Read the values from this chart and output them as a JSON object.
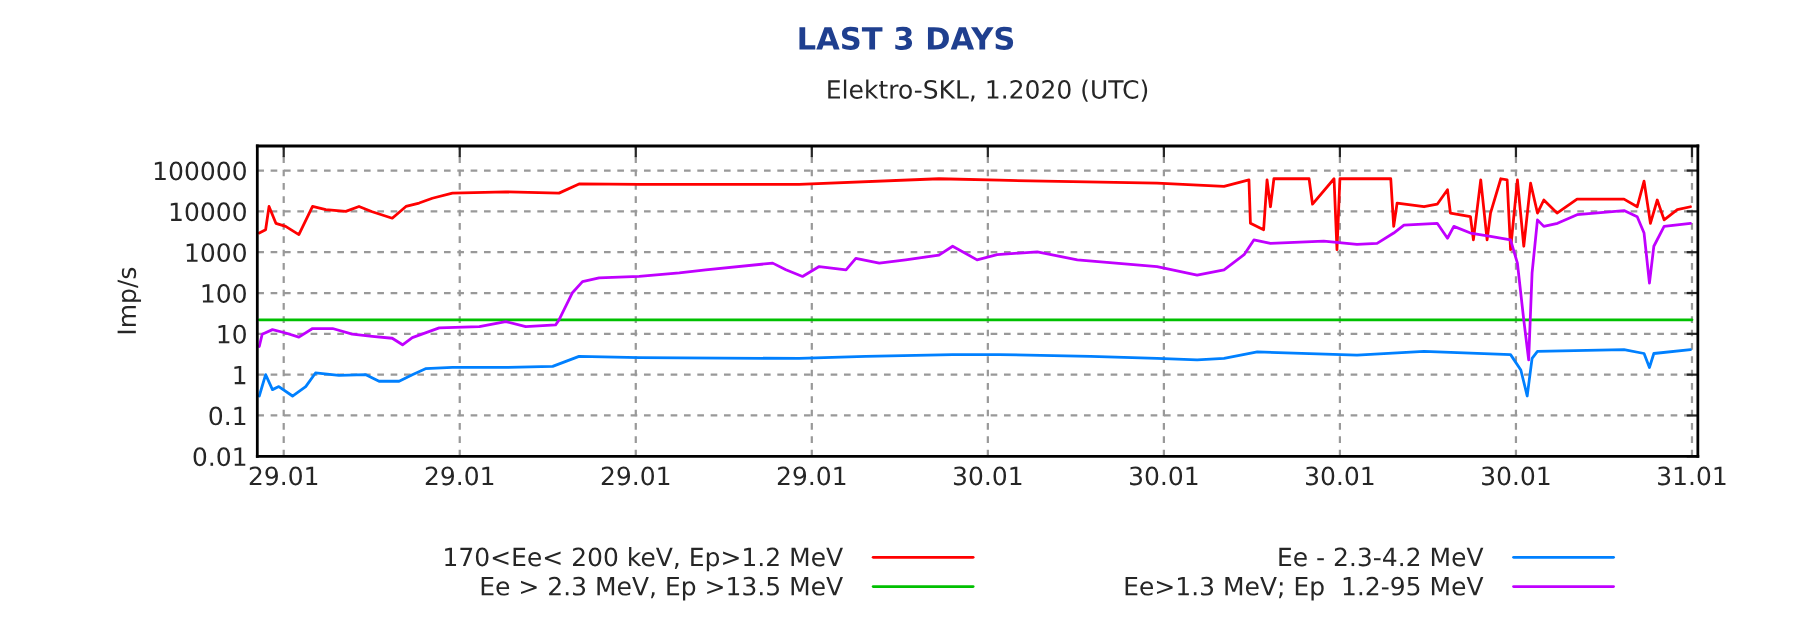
{
  "chart_data": {
    "type": "line",
    "title": "LAST 3 DAYS",
    "subtitle": "Elektro-SKL, 1.2020 (UTC)",
    "ylabel": "Imp/s",
    "log": "y",
    "grid": true,
    "legend": "bottom",
    "line_style": "solid",
    "marker": "none",
    "xlim": [
      "2020-01-28T23:06",
      "2020-01-31T00:12"
    ],
    "xticks": [
      {
        "value": "2020-01-29T00:00",
        "label": "29.01"
      },
      {
        "value": "2020-01-29T06:00",
        "label": "29.01"
      },
      {
        "value": "2020-01-29T12:00",
        "label": "29.01"
      },
      {
        "value": "2020-01-29T18:00",
        "label": "29.01"
      },
      {
        "value": "2020-01-30T00:00",
        "label": "30.01"
      },
      {
        "value": "2020-01-30T06:00",
        "label": "30.01"
      },
      {
        "value": "2020-01-30T12:00",
        "label": "30.01"
      },
      {
        "value": "2020-01-30T18:00",
        "label": "30.01"
      },
      {
        "value": "2020-01-31T00:00",
        "label": "31.01"
      }
    ],
    "ylim": [
      0.01,
      400000
    ],
    "yticks": [
      0.01,
      0.1,
      1,
      10,
      100,
      1000,
      10000,
      100000
    ],
    "series": [
      {
        "name": "170<Ee< 200 keV, Ep>1.2 MeV",
        "color": "#ff0000",
        "x": [
          "2020-01-28T23:10",
          "2020-01-28T23:23",
          "2020-01-28T23:30",
          "2020-01-28T23:44",
          "2020-01-29T00:04",
          "2020-01-29T00:31",
          "2020-01-29T00:59",
          "2020-01-29T01:26",
          "2020-01-29T02:07",
          "2020-01-29T02:34",
          "2020-01-29T03:01",
          "2020-01-29T03:42",
          "2020-01-29T04:10",
          "2020-01-29T04:37",
          "2020-01-29T05:04",
          "2020-01-29T05:45",
          "2020-01-29T07:34",
          "2020-01-29T09:23",
          "2020-01-29T10:04",
          "2020-01-29T12:07",
          "2020-01-29T17:34",
          "2020-01-29T22:20",
          "2020-01-30T00:23",
          "2020-01-30T05:46",
          "2020-01-30T08:03",
          "2020-01-30T08:54",
          "2020-01-30T08:57",
          "2020-01-30T09:24",
          "2020-01-30T09:31",
          "2020-01-30T09:38",
          "2020-01-30T09:45",
          "2020-01-30T10:57",
          "2020-01-30T11:04",
          "2020-01-30T11:48",
          "2020-01-30T11:54",
          "2020-01-30T12:00",
          "2020-01-30T13:44",
          "2020-01-30T13:50",
          "2020-01-30T13:57",
          "2020-01-30T14:52",
          "2020-01-30T15:19",
          "2020-01-30T15:40",
          "2020-01-30T15:46",
          "2020-01-30T16:27",
          "2020-01-30T16:33",
          "2020-01-30T16:48",
          "2020-01-30T17:01",
          "2020-01-30T17:08",
          "2020-01-30T17:29",
          "2020-01-30T17:42",
          "2020-01-30T17:49",
          "2020-01-30T18:03",
          "2020-01-30T18:16",
          "2020-01-30T18:30",
          "2020-01-30T18:44",
          "2020-01-30T18:57",
          "2020-01-30T19:24",
          "2020-01-30T20:05",
          "2020-01-30T21:41",
          "2020-01-30T22:08",
          "2020-01-30T22:22",
          "2020-01-30T22:35",
          "2020-01-30T22:49",
          "2020-01-30T23:03",
          "2020-01-30T23:30",
          "2020-01-30T23:57"
        ],
        "values": [
          2950,
          3550,
          13200,
          5100,
          4300,
          2700,
          13200,
          11000,
          10000,
          13200,
          9800,
          6800,
          13200,
          16000,
          21000,
          28000,
          30000,
          28000,
          47000,
          46000,
          46000,
          63000,
          58000,
          49000,
          41000,
          59000,
          5100,
          3550,
          59000,
          13000,
          63000,
          63000,
          15000,
          63000,
          1150,
          63000,
          63000,
          4300,
          16000,
          13000,
          15000,
          34000,
          9100,
          7400,
          2000,
          59000,
          2000,
          9100,
          63000,
          59000,
          1150,
          59000,
          1400,
          49000,
          9100,
          19000,
          9100,
          20000,
          20000,
          13000,
          55000,
          5100,
          19000,
          6200,
          11000,
          13000
        ]
      },
      {
        "name": "Ee > 2.3 MeV, Ep >13.5 MeV",
        "color": "#00c000",
        "x": [
          "2020-01-28T23:10",
          "2020-01-31T00:00"
        ],
        "values": [
          22,
          22
        ]
      },
      {
        "name": "Ee - 2.3-4.2 MeV",
        "color": "#0080ff",
        "x": [
          "2020-01-28T23:10",
          "2020-01-28T23:23",
          "2020-01-28T23:37",
          "2020-01-28T23:50",
          "2020-01-29T00:18",
          "2020-01-29T00:45",
          "2020-01-29T01:05",
          "2020-01-29T01:53",
          "2020-01-29T02:48",
          "2020-01-29T03:15",
          "2020-01-29T03:56",
          "2020-01-29T04:23",
          "2020-01-29T04:50",
          "2020-01-29T05:45",
          "2020-01-29T07:34",
          "2020-01-29T09:10",
          "2020-01-29T10:04",
          "2020-01-29T12:07",
          "2020-01-29T17:34",
          "2020-01-29T19:50",
          "2020-01-29T22:48",
          "2020-01-30T00:23",
          "2020-01-30T03:30",
          "2020-01-30T05:46",
          "2020-01-30T07:08",
          "2020-01-30T08:03",
          "2020-01-30T09:11",
          "2020-01-30T12:35",
          "2020-01-30T14:52",
          "2020-01-30T17:49",
          "2020-01-30T18:10",
          "2020-01-30T18:23",
          "2020-01-30T18:33",
          "2020-01-30T18:44",
          "2020-01-30T21:41",
          "2020-01-30T22:22",
          "2020-01-30T22:33",
          "2020-01-30T22:42",
          "2020-01-30T23:57"
        ],
        "values": [
          0.3,
          1.0,
          0.43,
          0.51,
          0.3,
          0.51,
          1.1,
          0.96,
          1.0,
          0.69,
          0.69,
          1.0,
          1.4,
          1.5,
          1.5,
          1.6,
          2.8,
          2.6,
          2.5,
          2.8,
          3.1,
          3.1,
          2.8,
          2.5,
          2.3,
          2.5,
          3.6,
          3.0,
          3.7,
          3.1,
          1.3,
          0.3,
          2.5,
          3.7,
          4.1,
          3.3,
          1.5,
          3.3,
          4.1
        ]
      },
      {
        "name": "Ee>1.3 MeV; Ep  1.2-95 MeV",
        "color": "#c000ff",
        "x": [
          "2020-01-28T23:10",
          "2020-01-28T23:16",
          "2020-01-28T23:37",
          "2020-01-29T00:04",
          "2020-01-29T00:31",
          "2020-01-29T00:59",
          "2020-01-29T01:40",
          "2020-01-29T02:20",
          "2020-01-29T03:01",
          "2020-01-29T03:42",
          "2020-01-29T04:03",
          "2020-01-29T04:23",
          "2020-01-29T05:18",
          "2020-01-29T06:40",
          "2020-01-29T07:34",
          "2020-01-29T08:15",
          "2020-01-29T09:16",
          "2020-01-29T09:23",
          "2020-01-29T09:50",
          "2020-01-29T10:11",
          "2020-01-29T10:45",
          "2020-01-29T12:07",
          "2020-01-29T13:29",
          "2020-01-29T14:23",
          "2020-01-29T16:40",
          "2020-01-29T17:07",
          "2020-01-29T17:41",
          "2020-01-29T18:15",
          "2020-01-29T19:10",
          "2020-01-29T19:30",
          "2020-01-29T20:18",
          "2020-01-29T21:12",
          "2020-01-29T22:20",
          "2020-01-29T22:48",
          "2020-01-29T23:38",
          "2020-01-30T00:19",
          "2020-01-30T01:41",
          "2020-01-30T03:03",
          "2020-01-30T05:46",
          "2020-01-30T07:08",
          "2020-01-30T08:03",
          "2020-01-30T08:44",
          "2020-01-30T09:04",
          "2020-01-30T09:38",
          "2020-01-30T11:27",
          "2020-01-30T12:35",
          "2020-01-30T13:16",
          "2020-01-30T13:50",
          "2020-01-30T14:11",
          "2020-01-30T15:19",
          "2020-01-30T15:40",
          "2020-01-30T15:53",
          "2020-01-30T16:27",
          "2020-01-30T17:08",
          "2020-01-30T17:49",
          "2020-01-30T18:03",
          "2020-01-30T18:16",
          "2020-01-30T18:26",
          "2020-01-30T18:33",
          "2020-01-30T18:44",
          "2020-01-30T18:57",
          "2020-01-30T19:25",
          "2020-01-30T20:05",
          "2020-01-30T21:41",
          "2020-01-30T22:08",
          "2020-01-30T22:22",
          "2020-01-30T22:33",
          "2020-01-30T22:42",
          "2020-01-30T23:03",
          "2020-01-30T23:57"
        ],
        "values": [
          4.9,
          9.8,
          12.7,
          10.5,
          8.3,
          13.5,
          13.5,
          9.8,
          8.7,
          7.8,
          5.4,
          8.1,
          14,
          15,
          20,
          15,
          16.5,
          22,
          100,
          190,
          235,
          255,
          310,
          370,
          540,
          370,
          255,
          445,
          370,
          710,
          540,
          650,
          850,
          1400,
          650,
          870,
          1020,
          650,
          445,
          275,
          370,
          870,
          2000,
          1650,
          1860,
          1550,
          1650,
          2950,
          4600,
          5100,
          2200,
          4300,
          2950,
          2450,
          2000,
          540,
          22,
          2.3,
          310,
          6200,
          4300,
          5100,
          8300,
          10500,
          7400,
          2950,
          175,
          1400,
          4300,
          5100
        ]
      }
    ]
  }
}
